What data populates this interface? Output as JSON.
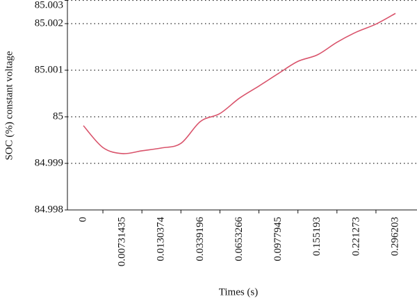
{
  "chart_data": {
    "type": "line",
    "y_label": "SOC (%) constant voltage",
    "x_label": "Times (s)",
    "categories": [
      "0",
      null,
      "0.00731435",
      null,
      "0.0130374",
      null,
      "0.0339196",
      null,
      "0.0653266",
      null,
      "0.0977945",
      null,
      "0.155193",
      null,
      "0.221273",
      null,
      "0.296203"
    ],
    "series": [
      {
        "name": "SOC",
        "color": "#d9536b",
        "values": [
          84.99981,
          84.99934,
          84.99921,
          84.99927,
          84.99933,
          84.99943,
          84.9999,
          85.00007,
          85.0004,
          85.00066,
          85.00093,
          85.00119,
          85.00133,
          85.0016,
          85.00182,
          85.00199,
          85.00222
        ]
      }
    ],
    "ylim": [
      84.998,
      85.0025
    ],
    "yticks": [
      84.998,
      84.999,
      {
        "value": 85,
        "label": "85"
      },
      85.001,
      85.002,
      {
        "value": 85.0025,
        "label": "85.003"
      }
    ],
    "grid": true
  }
}
